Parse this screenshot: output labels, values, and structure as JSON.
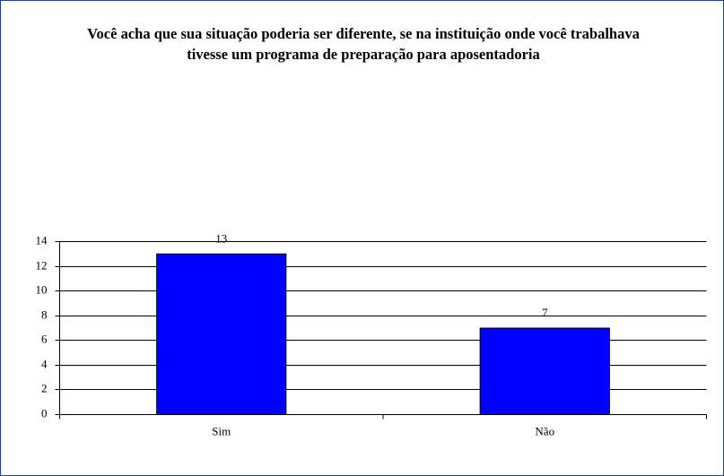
{
  "chart_data": {
    "type": "bar",
    "title": "Você acha que sua situação poderia ser diferente, se na instituição onde você trabalhava tivesse um programa de preparação para aposentadoria",
    "categories": [
      "Sim",
      "Não"
    ],
    "values": [
      13,
      7
    ],
    "color": "#0000ff",
    "ylim": [
      0,
      14
    ],
    "yticks": [
      0,
      2,
      4,
      6,
      8,
      10,
      12,
      14
    ],
    "grid": true
  }
}
